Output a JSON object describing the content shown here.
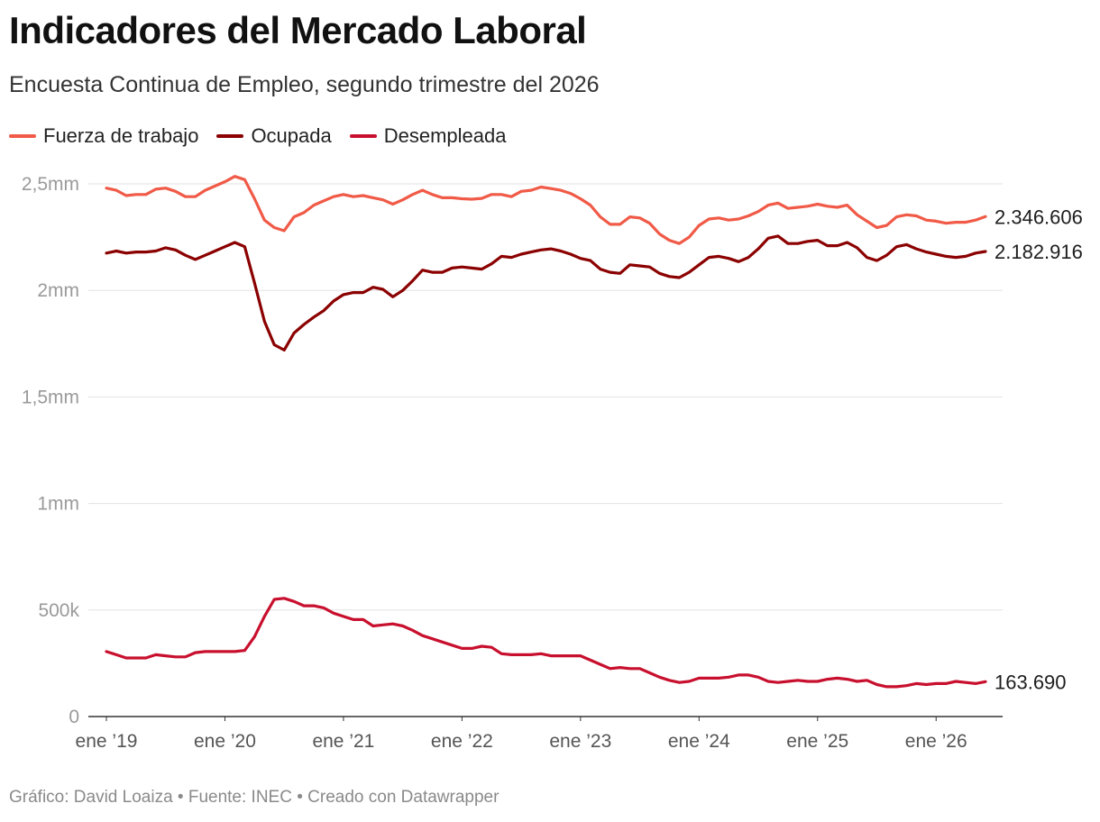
{
  "header": {
    "title": "Indicadores del Mercado Laboral",
    "subtitle": "Encuesta Continua de Empleo, segundo trimestre del 2026"
  },
  "footer": {
    "credit": "Gráfico: David Loaiza • Fuente: INEC • Creado con Datawrapper"
  },
  "chart_data": {
    "type": "line",
    "title": "Indicadores del Mercado Laboral",
    "subtitle": "Encuesta Continua de Empleo, segundo trimestre del 2026",
    "xlabel": "",
    "ylabel": "",
    "ylim": [
      0,
      2500000
    ],
    "yticks": [
      0,
      500000,
      1000000,
      1500000,
      2000000,
      2500000
    ],
    "ytick_labels": [
      "0",
      "500k",
      "1mm",
      "1,5mm",
      "2mm",
      "2,5mm"
    ],
    "x_start": "2019-01",
    "x_frequency": "monthly",
    "xtick_labels": [
      "ene ’19",
      "ene ’20",
      "ene ’21",
      "ene ’22",
      "ene ’23",
      "ene ’24",
      "ene ’25",
      "ene ’26"
    ],
    "grid": true,
    "legend_position": "top-left",
    "series": [
      {
        "name": "Fuerza de trabajo",
        "color": "#f05a47",
        "end_label": "2.346.606",
        "values": [
          2480000,
          2470000,
          2445000,
          2450000,
          2450000,
          2475000,
          2480000,
          2465000,
          2440000,
          2440000,
          2470000,
          2490000,
          2510000,
          2535000,
          2520000,
          2430000,
          2330000,
          2295000,
          2280000,
          2345000,
          2365000,
          2400000,
          2420000,
          2440000,
          2450000,
          2440000,
          2445000,
          2435000,
          2425000,
          2405000,
          2425000,
          2450000,
          2470000,
          2450000,
          2435000,
          2435000,
          2430000,
          2428000,
          2432000,
          2450000,
          2450000,
          2440000,
          2465000,
          2470000,
          2485000,
          2478000,
          2470000,
          2455000,
          2430000,
          2400000,
          2345000,
          2310000,
          2310000,
          2345000,
          2340000,
          2315000,
          2265000,
          2235000,
          2220000,
          2250000,
          2305000,
          2335000,
          2340000,
          2330000,
          2335000,
          2350000,
          2370000,
          2400000,
          2410000,
          2385000,
          2390000,
          2395000,
          2405000,
          2395000,
          2390000,
          2400000,
          2355000,
          2325000,
          2295000,
          2305000,
          2345000,
          2355000,
          2350000,
          2330000,
          2325000,
          2315000,
          2320000,
          2320000,
          2330000,
          2346606
        ]
      },
      {
        "name": "Ocupada",
        "color": "#8b0000",
        "end_label": "2.182.916",
        "values": [
          2175000,
          2185000,
          2175000,
          2180000,
          2180000,
          2185000,
          2200000,
          2190000,
          2165000,
          2145000,
          2165000,
          2185000,
          2205000,
          2225000,
          2205000,
          2035000,
          1855000,
          1745000,
          1720000,
          1800000,
          1840000,
          1875000,
          1905000,
          1950000,
          1980000,
          1990000,
          1990000,
          2015000,
          2005000,
          1970000,
          2000000,
          2045000,
          2095000,
          2085000,
          2085000,
          2105000,
          2110000,
          2105000,
          2100000,
          2125000,
          2160000,
          2155000,
          2170000,
          2180000,
          2190000,
          2195000,
          2185000,
          2170000,
          2150000,
          2140000,
          2100000,
          2085000,
          2080000,
          2120000,
          2115000,
          2110000,
          2080000,
          2065000,
          2060000,
          2085000,
          2120000,
          2155000,
          2160000,
          2150000,
          2135000,
          2155000,
          2195000,
          2245000,
          2255000,
          2220000,
          2220000,
          2230000,
          2235000,
          2210000,
          2210000,
          2225000,
          2200000,
          2155000,
          2140000,
          2165000,
          2205000,
          2215000,
          2195000,
          2180000,
          2170000,
          2160000,
          2155000,
          2160000,
          2175000,
          2182916
        ]
      },
      {
        "name": "Desempleada",
        "color": "#c8102e",
        "end_label": "163.690",
        "values": [
          305000,
          290000,
          275000,
          275000,
          275000,
          290000,
          285000,
          280000,
          280000,
          300000,
          305000,
          305000,
          305000,
          305000,
          310000,
          375000,
          470000,
          550000,
          555000,
          540000,
          520000,
          520000,
          510000,
          485000,
          470000,
          455000,
          455000,
          425000,
          430000,
          435000,
          425000,
          405000,
          380000,
          365000,
          350000,
          335000,
          320000,
          320000,
          330000,
          325000,
          295000,
          290000,
          290000,
          290000,
          295000,
          285000,
          285000,
          285000,
          285000,
          265000,
          245000,
          225000,
          230000,
          225000,
          225000,
          205000,
          185000,
          170000,
          160000,
          165000,
          180000,
          180000,
          180000,
          185000,
          195000,
          195000,
          185000,
          165000,
          160000,
          165000,
          170000,
          165000,
          165000,
          175000,
          180000,
          175000,
          165000,
          170000,
          150000,
          140000,
          140000,
          145000,
          155000,
          150000,
          155000,
          155000,
          165000,
          160000,
          155000,
          163690
        ]
      }
    ]
  }
}
